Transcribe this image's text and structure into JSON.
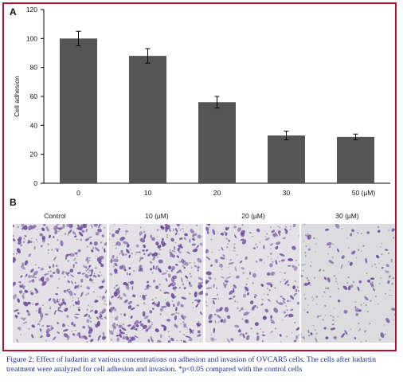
{
  "chart_data": {
    "type": "bar",
    "panel_label": "A",
    "categories": [
      "0",
      "10",
      "20",
      "30",
      "50 (µM)"
    ],
    "values": [
      100,
      88,
      56,
      33,
      32
    ],
    "errors": [
      5,
      5,
      4,
      3,
      2
    ],
    "ylabel": "Cell adhesion",
    "xlabel": "",
    "ylim": [
      0,
      120
    ],
    "yticks": [
      0,
      20,
      40,
      60,
      80,
      100,
      120
    ],
    "bar_color": "#555555",
    "grid": false
  },
  "panel_b": {
    "label": "B",
    "images": [
      {
        "caption": "Control",
        "density": "high"
      },
      {
        "caption": "10 (µM)",
        "density": "high"
      },
      {
        "caption": "20 (µM)",
        "density": "medium"
      },
      {
        "caption": "30 (µM)",
        "density": "low"
      }
    ]
  },
  "caption": {
    "text": "Figure 2: Effect of ludartin at various concentrations on adhesion and invasion of OVCAR5 cells. The cells after ludartin treatment were analyzed for cell adhesion and invasion. *p<0.05 compared with the control cells",
    "color": "#1e2f9e"
  },
  "colors": {
    "frame": "#b5122a",
    "stain": "#6a4c9c"
  }
}
